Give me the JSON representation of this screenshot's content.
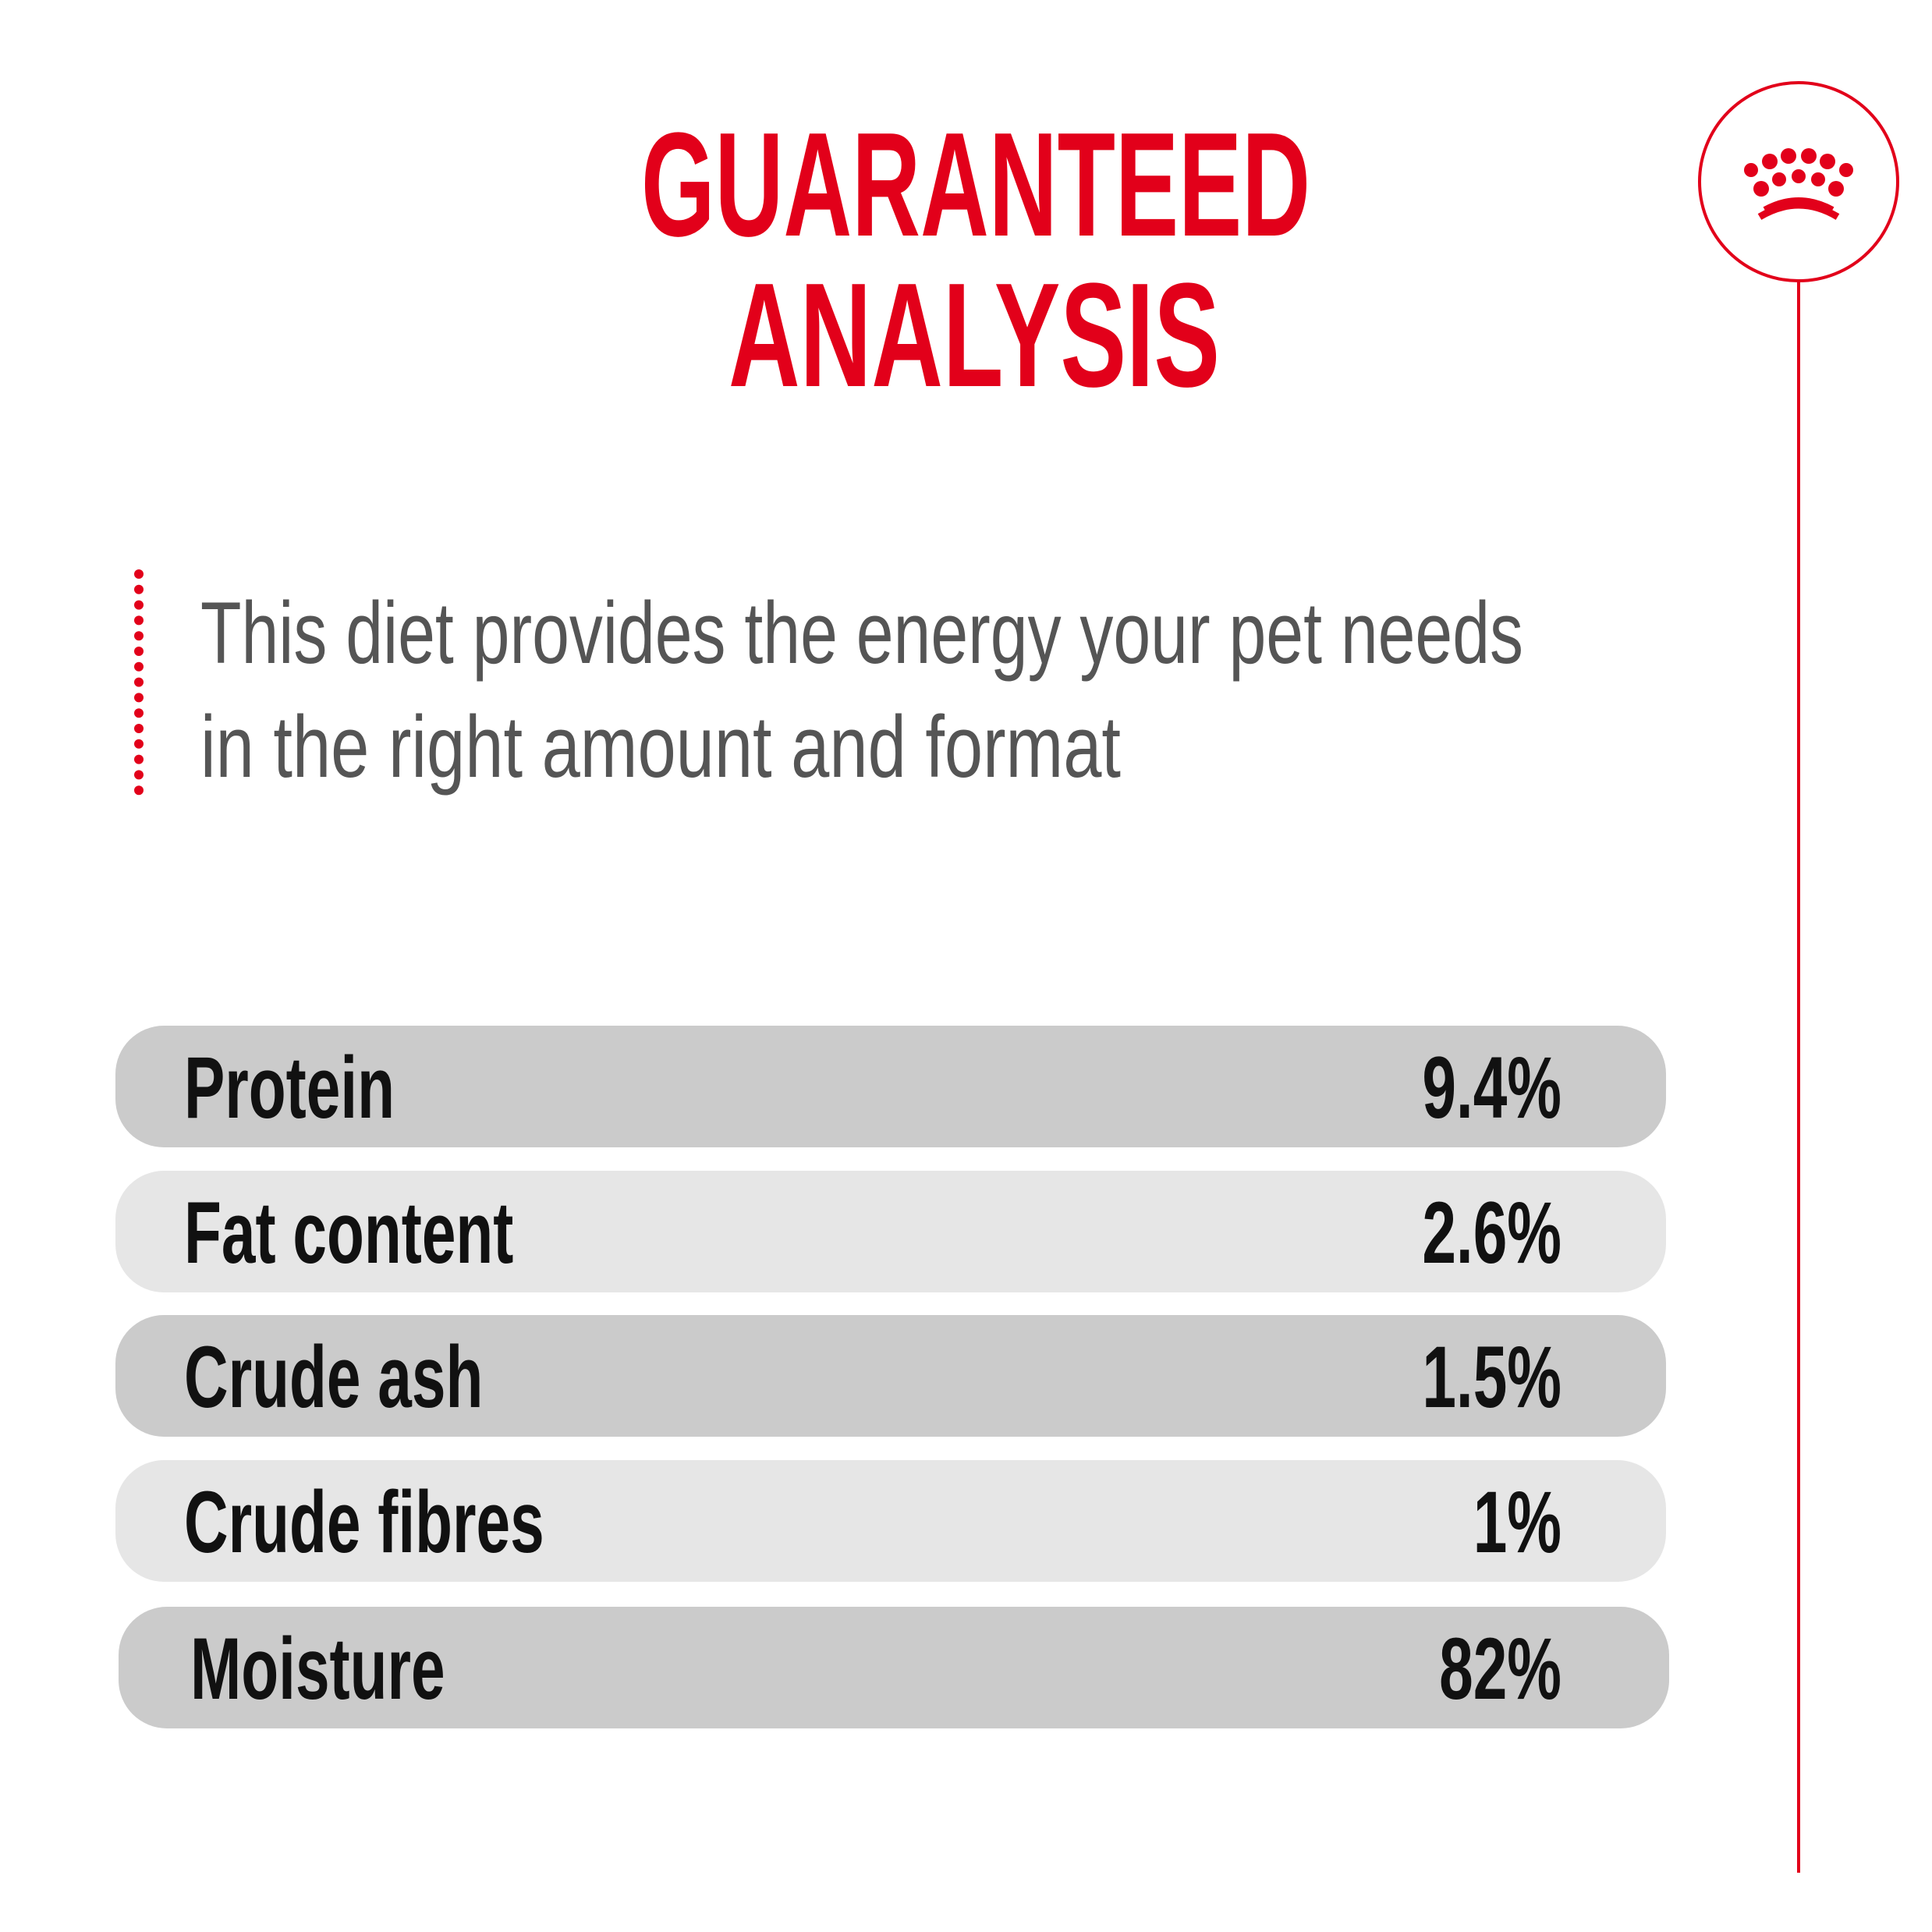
{
  "header": {
    "title_lines": [
      "GUARANTEED",
      "ANALYSIS"
    ]
  },
  "description": {
    "lines": [
      "This diet provides the energy your pet needs",
      "in the right amount and format"
    ]
  },
  "table": {
    "rows": [
      [
        "Protein",
        "9.4%"
      ],
      [
        "Fat content",
        "2.6%"
      ],
      [
        "Crude ash",
        "1.5%"
      ],
      [
        "Crude fibres",
        "1%"
      ],
      [
        "Moisture",
        "82%"
      ]
    ]
  }
}
